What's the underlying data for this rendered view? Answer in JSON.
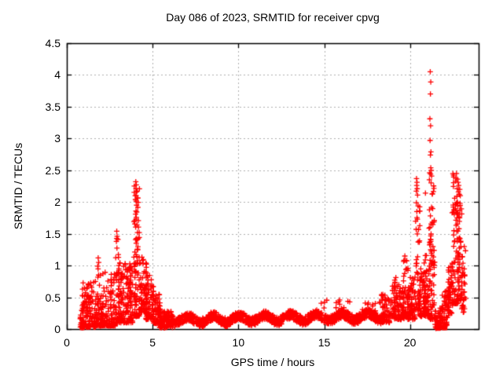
{
  "chart_data": {
    "type": "scatter",
    "title": "Day 086 of 2023, SRMTID for receiver cpvg",
    "xlabel": "GPS time / hours",
    "ylabel": "SRMTID / TECUs",
    "xlim": [
      0,
      24
    ],
    "ylim": [
      0,
      4.5
    ],
    "xticks": [
      0,
      5,
      10,
      15,
      20
    ],
    "xtick_labels": [
      "0",
      "5",
      "10",
      "15",
      "20"
    ],
    "yticks": [
      0,
      0.5,
      1,
      1.5,
      2,
      2.5,
      3,
      3.5,
      4,
      4.5
    ],
    "ytick_labels": [
      "0",
      "0.5",
      "1",
      "1.5",
      "2",
      "2.5",
      "3",
      "3.5",
      "4",
      "4.5"
    ],
    "grid": true,
    "legend": "none",
    "marker": "plus",
    "marker_color": "#ff0000",
    "grid_color": "#b0b0b0",
    "frame_color": "#000000",
    "background_color": "#ffffff",
    "data_x_extent": [
      0.78,
      23.25
    ],
    "data_y_max": 4.05,
    "seed": 1234,
    "cluster_fields": [
      "x0",
      "x1",
      "ymin",
      "ymax",
      "n",
      "bias"
    ],
    "clusters": [
      [
        0.78,
        0.95,
        0.02,
        0.3,
        25,
        1.5
      ],
      [
        0.9,
        1.7,
        0.03,
        0.75,
        120,
        2.2
      ],
      [
        1.7,
        2.0,
        0.05,
        1.05,
        50,
        2.5
      ],
      [
        2.0,
        2.85,
        0.05,
        0.9,
        130,
        2.2
      ],
      [
        2.85,
        3.05,
        0.1,
        1.5,
        40,
        2.5
      ],
      [
        3.0,
        3.85,
        0.1,
        1.05,
        150,
        1.6
      ],
      [
        3.9,
        4.25,
        0.2,
        2.3,
        90,
        2.0
      ],
      [
        4.25,
        4.65,
        0.25,
        1.15,
        70,
        1.8
      ],
      [
        4.6,
        5.05,
        0.15,
        0.85,
        70,
        1.8
      ],
      [
        5.0,
        5.45,
        0.08,
        0.55,
        60,
        1.8
      ],
      [
        5.4,
        6.2,
        0.02,
        0.28,
        110,
        1.3
      ],
      [
        14.3,
        18.3,
        0.28,
        0.46,
        25,
        1.2
      ],
      [
        18.3,
        18.95,
        0.1,
        0.55,
        60,
        1.7
      ],
      [
        18.95,
        19.35,
        0.15,
        0.82,
        55,
        1.7
      ],
      [
        19.35,
        19.65,
        0.15,
        0.65,
        40,
        1.6
      ],
      [
        19.6,
        19.9,
        0.2,
        1.1,
        45,
        1.9
      ],
      [
        19.85,
        20.3,
        0.15,
        0.85,
        70,
        1.8
      ],
      [
        20.3,
        20.6,
        0.3,
        2.0,
        45,
        2.3
      ],
      [
        20.55,
        20.85,
        0.2,
        0.95,
        45,
        1.7
      ],
      [
        20.8,
        21.1,
        0.2,
        1.25,
        60,
        1.8
      ],
      [
        21.1,
        21.45,
        0.15,
        2.5,
        80,
        2.0
      ],
      [
        21.45,
        21.85,
        0.01,
        0.35,
        45,
        1.5
      ],
      [
        21.85,
        22.25,
        0.05,
        0.6,
        50,
        1.6
      ],
      [
        22.2,
        22.5,
        0.25,
        1.05,
        45,
        1.6
      ],
      [
        22.45,
        22.8,
        0.4,
        2.45,
        70,
        1.9
      ],
      [
        22.75,
        23.05,
        0.45,
        2.1,
        60,
        1.8
      ],
      [
        23.0,
        23.25,
        0.25,
        1.3,
        30,
        1.6
      ]
    ],
    "band": {
      "x0": 6.1,
      "x1": 18.55,
      "n": 1080,
      "center": 0.17,
      "trend_per_hour": 0.005,
      "trend_ref_hour": 12,
      "wave_amp": 0.05,
      "wave_period": 1.5,
      "wave_phase": -2.4,
      "spread": 0.07,
      "ymin": 0.02
    },
    "outliers": [
      [
        1.8,
        0.99
      ],
      [
        1.83,
        1.12
      ],
      [
        1.86,
        1.05
      ],
      [
        2.89,
        1.38
      ],
      [
        2.91,
        1.54
      ],
      [
        2.93,
        1.46
      ],
      [
        4.0,
        2.04
      ],
      [
        4.02,
        2.32
      ],
      [
        4.03,
        2.21
      ],
      [
        4.03,
        1.86
      ],
      [
        4.04,
        2.1
      ],
      [
        4.05,
        2.27
      ],
      [
        4.05,
        1.76
      ],
      [
        4.06,
        2.16
      ],
      [
        4.07,
        1.95
      ],
      [
        4.09,
        1.64
      ],
      [
        4.12,
        1.52
      ],
      [
        19.7,
        1.15
      ],
      [
        19.73,
        1.08
      ],
      [
        20.36,
        1.57
      ],
      [
        20.37,
        2.17
      ],
      [
        20.38,
        2.37
      ],
      [
        20.39,
        2.26
      ],
      [
        20.4,
        1.85
      ],
      [
        20.41,
        2.31
      ],
      [
        20.42,
        2.21
      ],
      [
        20.43,
        1.73
      ],
      [
        20.44,
        2.11
      ],
      [
        20.47,
        1.94
      ],
      [
        20.9,
        2.14
      ],
      [
        21.13,
        2.35
      ],
      [
        21.15,
        2.46
      ],
      [
        21.16,
        3.31
      ],
      [
        21.17,
        2.97
      ],
      [
        21.18,
        4.05
      ],
      [
        21.19,
        3.7
      ],
      [
        21.19,
        2.74
      ],
      [
        21.2,
        3.2
      ],
      [
        21.2,
        2.44
      ],
      [
        21.21,
        3.89
      ],
      [
        21.21,
        2.54
      ],
      [
        21.22,
        2.79
      ],
      [
        21.23,
        2.3
      ],
      [
        21.24,
        2.5
      ],
      [
        21.26,
        2.41
      ],
      [
        22.6,
        2.06
      ],
      [
        22.64,
        1.96
      ],
      [
        22.71,
        2.45
      ],
      [
        22.75,
        2.21
      ],
      [
        22.77,
        2.36
      ],
      [
        22.8,
        2.31
      ],
      [
        22.82,
        2.16
      ],
      [
        22.84,
        2.26
      ],
      [
        22.87,
        2.12
      ],
      [
        22.9,
        2.2
      ],
      [
        22.93,
        2.1
      ]
    ],
    "squares": [
      [
        0.9,
        0.02
      ],
      [
        21.56,
        0.03
      ],
      [
        21.64,
        0.01
      ],
      [
        21.96,
        0.02
      ],
      [
        22.04,
        0.02
      ]
    ]
  }
}
